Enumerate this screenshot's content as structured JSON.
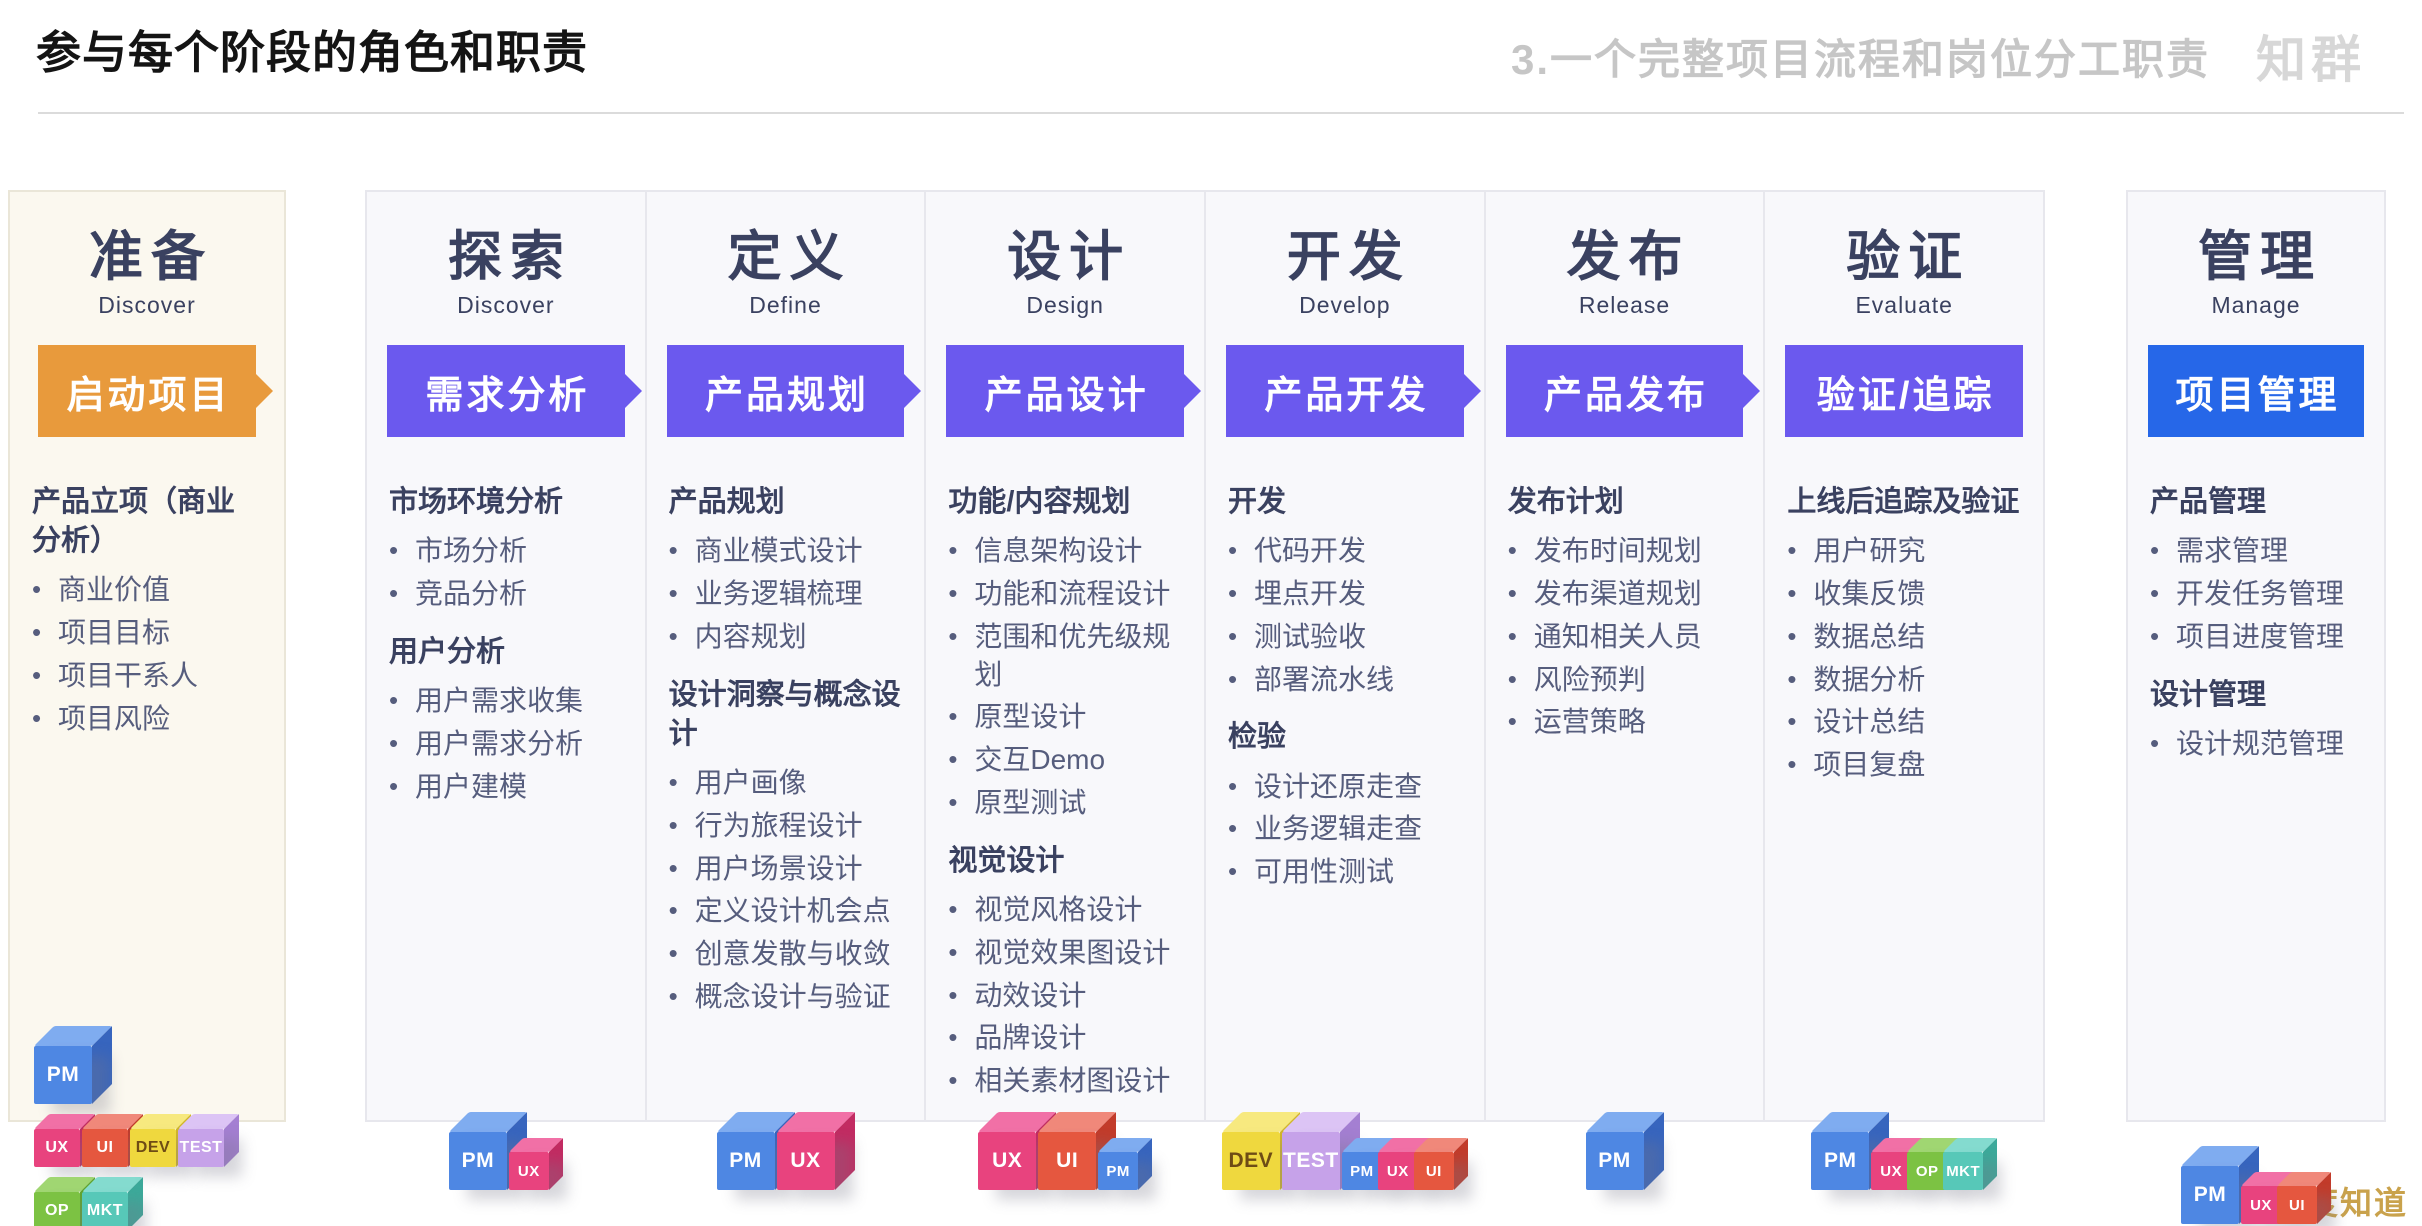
{
  "header": {
    "title": "参与每个阶段的角色和职责",
    "subtitle": "3.一个完整项目流程和岗位分工职责",
    "logo": "知群"
  },
  "watermark": "百度知道",
  "colors": {
    "phase_text": "#3A4160",
    "item_text": "#565D7D",
    "prepare_card_bg": "#FBF8EF",
    "process_card_bg": "#F8F8FB",
    "banner_orange": "#E89A3C",
    "banner_purple": "#6B59EE",
    "banner_blue": "#2667E8"
  },
  "roles": {
    "PM": {
      "label": "PM",
      "front": "#4E87E3",
      "top": "#7FACF0",
      "side": "#3765BE",
      "text": "#FFFFFF"
    },
    "UX": {
      "label": "UX",
      "front": "#E8437E",
      "top": "#F170A6",
      "side": "#C22B62",
      "text": "#FFFFFF"
    },
    "UI": {
      "label": "UI",
      "front": "#E5573F",
      "top": "#F0887A",
      "side": "#C23B2A",
      "text": "#FFFFFF"
    },
    "DEV": {
      "label": "DEV",
      "front": "#EFD83E",
      "top": "#F7E97F",
      "side": "#D2B728",
      "text": "#6E4C15"
    },
    "TEST": {
      "label": "TEST",
      "front": "#C6A2E9",
      "top": "#DCC4F5",
      "side": "#A47FD2",
      "text": "#FFFFFF"
    },
    "OP": {
      "label": "OP",
      "front": "#7CC243",
      "top": "#A0D672",
      "side": "#60A52E",
      "text": "#FFFFFF"
    },
    "MKT": {
      "label": "MKT",
      "front": "#57C8B8",
      "top": "#84DBCF",
      "side": "#3CA99A",
      "text": "#FFFFFF"
    }
  },
  "columns": [
    {
      "id": "prepare",
      "title": "准备",
      "subtitle": "Discover",
      "banner": {
        "label": "启动项目",
        "color": "#E89A3C",
        "arrow": true
      },
      "sections": [
        {
          "heading": "产品立项（商业分析）",
          "items": [
            "商业价值",
            "项目目标",
            "项目干系人",
            "项目风险"
          ]
        }
      ],
      "cube_rows": [
        [
          {
            "role": "PM",
            "size": "large"
          }
        ],
        [
          {
            "role": "UX",
            "size": "mid"
          },
          {
            "role": "UI",
            "size": "mid"
          },
          {
            "role": "DEV",
            "size": "mid"
          },
          {
            "role": "TEST",
            "size": "mid"
          }
        ],
        [
          {
            "role": "OP",
            "size": "mid"
          },
          {
            "role": "MKT",
            "size": "mid"
          }
        ]
      ]
    },
    {
      "id": "explore",
      "title": "探索",
      "subtitle": "Discover",
      "banner": {
        "label": "需求分析",
        "color": "#6B59EE",
        "arrow": true
      },
      "sections": [
        {
          "heading": "市场环境分析",
          "items": [
            "市场分析",
            "竞品分析"
          ]
        },
        {
          "heading": "用户分析",
          "items": [
            "用户需求收集",
            "用户需求分析",
            "用户建模"
          ]
        }
      ],
      "cube_rows": [
        [
          {
            "role": "PM",
            "size": "large"
          },
          {
            "role": "UX",
            "size": "small"
          }
        ]
      ]
    },
    {
      "id": "define",
      "title": "定义",
      "subtitle": "Define",
      "banner": {
        "label": "产品规划",
        "color": "#6B59EE",
        "arrow": true
      },
      "sections": [
        {
          "heading": "产品规划",
          "items": [
            "商业模式设计",
            "业务逻辑梳理",
            "内容规划"
          ]
        },
        {
          "heading": "设计洞察与概念设计",
          "items": [
            "用户画像",
            "行为旅程设计",
            "用户场景设计",
            "定义设计机会点",
            "创意发散与收敛",
            "概念设计与验证"
          ]
        }
      ],
      "cube_rows": [
        [
          {
            "role": "PM",
            "size": "large"
          },
          {
            "role": "UX",
            "size": "large"
          }
        ]
      ]
    },
    {
      "id": "design",
      "title": "设计",
      "subtitle": "Design",
      "banner": {
        "label": "产品设计",
        "color": "#6B59EE",
        "arrow": true
      },
      "sections": [
        {
          "heading": "功能/内容规划",
          "items": [
            "信息架构设计",
            "功能和流程设计",
            "范围和优先级规划",
            "原型设计",
            "交互Demo",
            "原型测试"
          ]
        },
        {
          "heading": "视觉设计",
          "items": [
            "视觉风格设计",
            "视觉效果图设计",
            "动效设计",
            "品牌设计",
            "相关素材图设计"
          ]
        }
      ],
      "cube_rows": [
        [
          {
            "role": "UX",
            "size": "large"
          },
          {
            "role": "UI",
            "size": "large"
          },
          {
            "role": "PM",
            "size": "small"
          }
        ]
      ]
    },
    {
      "id": "develop",
      "title": "开发",
      "subtitle": "Develop",
      "banner": {
        "label": "产品开发",
        "color": "#6B59EE",
        "arrow": true
      },
      "sections": [
        {
          "heading": "开发",
          "items": [
            "代码开发",
            "埋点开发",
            "测试验收",
            "部署流水线"
          ]
        },
        {
          "heading": "检验",
          "items": [
            "设计还原走查",
            "业务逻辑走查",
            "可用性测试"
          ]
        }
      ],
      "cube_rows": [
        [
          {
            "role": "DEV",
            "size": "large"
          },
          {
            "role": "TEST",
            "size": "large"
          },
          {
            "role": "PM",
            "size": "small"
          },
          {
            "role": "UX",
            "size": "small"
          },
          {
            "role": "UI",
            "size": "small"
          }
        ]
      ]
    },
    {
      "id": "release",
      "title": "发布",
      "subtitle": "Release",
      "banner": {
        "label": "产品发布",
        "color": "#6B59EE",
        "arrow": true
      },
      "sections": [
        {
          "heading": "发布计划",
          "items": [
            "发布时间规划",
            "发布渠道规划",
            "通知相关人员",
            "风险预判",
            "运营策略"
          ]
        }
      ],
      "cube_rows": [
        [
          {
            "role": "PM",
            "size": "large"
          }
        ]
      ]
    },
    {
      "id": "evaluate",
      "title": "验证",
      "subtitle": "Evaluate",
      "banner": {
        "label": "验证/追踪",
        "color": "#6B59EE",
        "arrow": false
      },
      "sections": [
        {
          "heading": "上线后追踪及验证",
          "items": [
            "用户研究",
            "收集反馈",
            "数据总结",
            "数据分析",
            "设计总结",
            "项目复盘"
          ]
        }
      ],
      "cube_rows": [
        [
          {
            "role": "PM",
            "size": "large"
          },
          {
            "role": "UX",
            "size": "small"
          },
          {
            "role": "OP",
            "size": "small"
          },
          {
            "role": "MKT",
            "size": "small"
          }
        ]
      ]
    },
    {
      "id": "manage",
      "title": "管理",
      "subtitle": "Manage",
      "banner": {
        "label": "项目管理",
        "color": "#2667E8",
        "arrow": false
      },
      "sections": [
        {
          "heading": "产品管理",
          "items": [
            "需求管理",
            "开发任务管理",
            "项目进度管理"
          ]
        },
        {
          "heading": "设计管理",
          "items": [
            "设计规范管理"
          ]
        }
      ],
      "cube_rows": [
        [
          {
            "role": "PM",
            "size": "large"
          },
          {
            "role": "UX",
            "size": "small"
          },
          {
            "role": "UI",
            "size": "small"
          }
        ]
      ]
    }
  ]
}
